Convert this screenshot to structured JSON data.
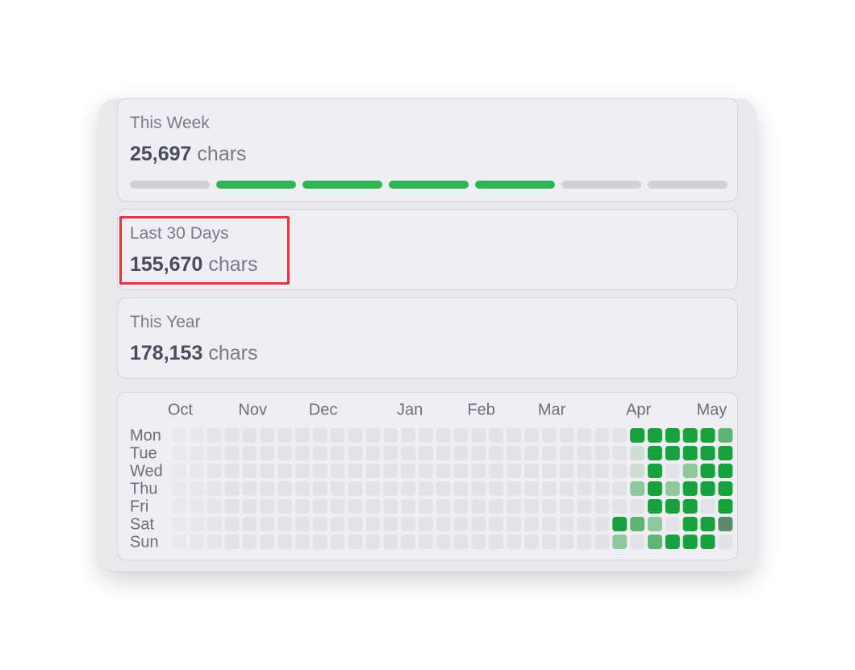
{
  "cards": [
    {
      "label": "This Week",
      "value": "25,697",
      "unit": "chars",
      "week_days_active": [
        false,
        true,
        true,
        true,
        true,
        false,
        false
      ]
    },
    {
      "label": "Last 30 Days",
      "value": "155,670",
      "unit": "chars"
    },
    {
      "label": "This Year",
      "value": "178,153",
      "unit": "chars"
    }
  ],
  "heatmap": {
    "columns": [
      "Oct",
      null,
      null,
      null,
      "Nov",
      null,
      null,
      null,
      "Dec",
      null,
      null,
      null,
      null,
      "Jan",
      null,
      null,
      null,
      "Feb",
      null,
      null,
      null,
      "Mar",
      null,
      null,
      null,
      null,
      "Apr",
      null,
      null,
      null,
      "May",
      null
    ],
    "weekdays": [
      "Mon",
      "Tue",
      "Wed",
      "Thu",
      "Fri",
      "Sat",
      "Sun"
    ],
    "colors": [
      "#e3e3e7",
      "#cfddd3",
      "#8ec89c",
      "#5fb674",
      "#17a23e",
      "#5a8a6b"
    ],
    "levels": [
      [
        0,
        0,
        0,
        0,
        0,
        0,
        0,
        0,
        0,
        0,
        0,
        0,
        0,
        0,
        0,
        0,
        0,
        0,
        0,
        0,
        0,
        0,
        0,
        0,
        0,
        0,
        4,
        4,
        4,
        4,
        4,
        3
      ],
      [
        0,
        0,
        0,
        0,
        0,
        0,
        0,
        0,
        0,
        0,
        0,
        0,
        0,
        0,
        0,
        0,
        0,
        0,
        0,
        0,
        0,
        0,
        0,
        0,
        0,
        0,
        1,
        4,
        4,
        4,
        4,
        4
      ],
      [
        0,
        0,
        0,
        0,
        0,
        0,
        0,
        0,
        0,
        0,
        0,
        0,
        0,
        0,
        0,
        0,
        0,
        0,
        0,
        0,
        0,
        0,
        0,
        0,
        0,
        0,
        1,
        4,
        0,
        2,
        4,
        4
      ],
      [
        0,
        0,
        0,
        0,
        0,
        0,
        0,
        0,
        0,
        0,
        0,
        0,
        0,
        0,
        0,
        0,
        0,
        0,
        0,
        0,
        0,
        0,
        0,
        0,
        0,
        0,
        2,
        4,
        2,
        4,
        4,
        4
      ],
      [
        0,
        0,
        0,
        0,
        0,
        0,
        0,
        0,
        0,
        0,
        0,
        0,
        0,
        0,
        0,
        0,
        0,
        0,
        0,
        0,
        0,
        0,
        0,
        0,
        0,
        0,
        0,
        4,
        4,
        4,
        0,
        4
      ],
      [
        0,
        0,
        0,
        0,
        0,
        0,
        0,
        0,
        0,
        0,
        0,
        0,
        0,
        0,
        0,
        0,
        0,
        0,
        0,
        0,
        0,
        0,
        0,
        0,
        0,
        4,
        3,
        2,
        0,
        4,
        4,
        5
      ],
      [
        0,
        0,
        0,
        0,
        0,
        0,
        0,
        0,
        0,
        0,
        0,
        0,
        0,
        0,
        0,
        0,
        0,
        0,
        0,
        0,
        0,
        0,
        0,
        0,
        0,
        2,
        0,
        3,
        4,
        4,
        4,
        0
      ]
    ]
  }
}
